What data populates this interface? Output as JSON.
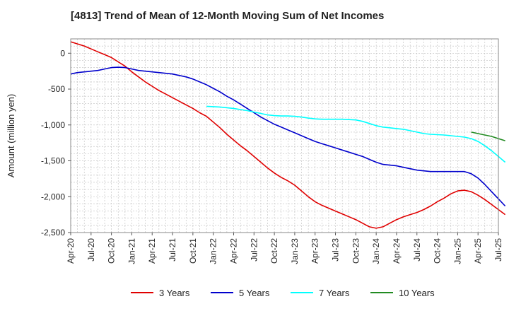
{
  "chart_data": {
    "type": "line",
    "title": "[4813]  Trend of Mean of 12-Month Moving Sum of Net Incomes",
    "xlabel": "",
    "ylabel": "Amount (million yen)",
    "ylim": [
      -2500,
      200
    ],
    "yticks": [
      0,
      -500,
      -1000,
      -1500,
      -2000,
      -2500
    ],
    "ytick_labels": [
      "0",
      "-500",
      "-1,000",
      "-1,500",
      "-2,000",
      "-2,500"
    ],
    "xticks": [
      "Apr-20",
      "Jul-20",
      "Oct-20",
      "Jan-21",
      "Apr-21",
      "Jul-21",
      "Oct-21",
      "Jan-22",
      "Apr-22",
      "Jul-22",
      "Oct-22",
      "Jan-23",
      "Apr-23",
      "Jul-23",
      "Oct-23",
      "Jan-24",
      "Apr-24",
      "Jul-24",
      "Oct-24",
      "Jan-25",
      "Apr-25",
      "Jul-25"
    ],
    "grid": true,
    "legend_position": "bottom",
    "series": [
      {
        "name": "3 Years",
        "color": "#e00000",
        "points": [
          [
            0,
            160
          ],
          [
            1,
            130
          ],
          [
            2,
            100
          ],
          [
            3,
            60
          ],
          [
            4,
            20
          ],
          [
            5,
            -20
          ],
          [
            6,
            -60
          ],
          [
            7,
            -120
          ],
          [
            8,
            -180
          ],
          [
            9,
            -260
          ],
          [
            10,
            -330
          ],
          [
            11,
            -400
          ],
          [
            12,
            -460
          ],
          [
            13,
            -520
          ],
          [
            14,
            -570
          ],
          [
            15,
            -620
          ],
          [
            16,
            -670
          ],
          [
            17,
            -720
          ],
          [
            18,
            -770
          ],
          [
            19,
            -830
          ],
          [
            20,
            -880
          ],
          [
            21,
            -960
          ],
          [
            22,
            -1040
          ],
          [
            23,
            -1130
          ],
          [
            24,
            -1210
          ],
          [
            25,
            -1290
          ],
          [
            26,
            -1360
          ],
          [
            27,
            -1440
          ],
          [
            28,
            -1520
          ],
          [
            29,
            -1600
          ],
          [
            30,
            -1670
          ],
          [
            31,
            -1730
          ],
          [
            32,
            -1780
          ],
          [
            33,
            -1840
          ],
          [
            34,
            -1920
          ],
          [
            35,
            -2000
          ],
          [
            36,
            -2070
          ],
          [
            37,
            -2120
          ],
          [
            38,
            -2160
          ],
          [
            39,
            -2200
          ],
          [
            40,
            -2240
          ],
          [
            41,
            -2280
          ],
          [
            42,
            -2320
          ],
          [
            43,
            -2370
          ],
          [
            44,
            -2420
          ],
          [
            45,
            -2440
          ],
          [
            46,
            -2420
          ],
          [
            47,
            -2370
          ],
          [
            48,
            -2320
          ],
          [
            49,
            -2280
          ],
          [
            50,
            -2250
          ],
          [
            51,
            -2220
          ],
          [
            52,
            -2180
          ],
          [
            53,
            -2130
          ],
          [
            54,
            -2070
          ],
          [
            55,
            -2020
          ],
          [
            56,
            -1960
          ],
          [
            57,
            -1920
          ],
          [
            58,
            -1910
          ],
          [
            59,
            -1930
          ],
          [
            60,
            -1980
          ],
          [
            61,
            -2040
          ],
          [
            62,
            -2110
          ],
          [
            63,
            -2180
          ],
          [
            64,
            -2250
          ]
        ]
      },
      {
        "name": "5 Years",
        "color": "#0000cc",
        "points": [
          [
            0,
            -290
          ],
          [
            1,
            -270
          ],
          [
            2,
            -260
          ],
          [
            3,
            -250
          ],
          [
            4,
            -240
          ],
          [
            5,
            -220
          ],
          [
            6,
            -200
          ],
          [
            7,
            -195
          ],
          [
            8,
            -200
          ],
          [
            9,
            -220
          ],
          [
            10,
            -240
          ],
          [
            11,
            -250
          ],
          [
            12,
            -260
          ],
          [
            13,
            -270
          ],
          [
            14,
            -280
          ],
          [
            15,
            -290
          ],
          [
            16,
            -310
          ],
          [
            17,
            -330
          ],
          [
            18,
            -360
          ],
          [
            19,
            -400
          ],
          [
            20,
            -440
          ],
          [
            21,
            -490
          ],
          [
            22,
            -540
          ],
          [
            23,
            -600
          ],
          [
            24,
            -650
          ],
          [
            25,
            -710
          ],
          [
            26,
            -770
          ],
          [
            27,
            -830
          ],
          [
            28,
            -890
          ],
          [
            29,
            -940
          ],
          [
            30,
            -990
          ],
          [
            31,
            -1030
          ],
          [
            32,
            -1070
          ],
          [
            33,
            -1110
          ],
          [
            34,
            -1150
          ],
          [
            35,
            -1190
          ],
          [
            36,
            -1230
          ],
          [
            37,
            -1260
          ],
          [
            38,
            -1290
          ],
          [
            39,
            -1320
          ],
          [
            40,
            -1350
          ],
          [
            41,
            -1380
          ],
          [
            42,
            -1410
          ],
          [
            43,
            -1440
          ],
          [
            44,
            -1480
          ],
          [
            45,
            -1520
          ],
          [
            46,
            -1550
          ],
          [
            47,
            -1560
          ],
          [
            48,
            -1570
          ],
          [
            49,
            -1590
          ],
          [
            50,
            -1610
          ],
          [
            51,
            -1630
          ],
          [
            52,
            -1640
          ],
          [
            53,
            -1650
          ],
          [
            54,
            -1650
          ],
          [
            55,
            -1650
          ],
          [
            56,
            -1650
          ],
          [
            57,
            -1650
          ],
          [
            58,
            -1650
          ],
          [
            59,
            -1680
          ],
          [
            60,
            -1740
          ],
          [
            61,
            -1830
          ],
          [
            62,
            -1930
          ],
          [
            63,
            -2030
          ],
          [
            64,
            -2130
          ]
        ]
      },
      {
        "name": "7 Years",
        "color": "#00ffff",
        "points": [
          [
            20,
            -740
          ],
          [
            21,
            -745
          ],
          [
            22,
            -750
          ],
          [
            23,
            -760
          ],
          [
            24,
            -770
          ],
          [
            25,
            -785
          ],
          [
            26,
            -800
          ],
          [
            27,
            -820
          ],
          [
            28,
            -840
          ],
          [
            29,
            -860
          ],
          [
            30,
            -870
          ],
          [
            31,
            -875
          ],
          [
            32,
            -875
          ],
          [
            33,
            -880
          ],
          [
            34,
            -890
          ],
          [
            35,
            -905
          ],
          [
            36,
            -915
          ],
          [
            37,
            -920
          ],
          [
            38,
            -920
          ],
          [
            39,
            -920
          ],
          [
            40,
            -920
          ],
          [
            41,
            -925
          ],
          [
            42,
            -930
          ],
          [
            43,
            -950
          ],
          [
            44,
            -980
          ],
          [
            45,
            -1010
          ],
          [
            46,
            -1030
          ],
          [
            47,
            -1040
          ],
          [
            48,
            -1050
          ],
          [
            49,
            -1060
          ],
          [
            50,
            -1080
          ],
          [
            51,
            -1100
          ],
          [
            52,
            -1120
          ],
          [
            53,
            -1130
          ],
          [
            54,
            -1135
          ],
          [
            55,
            -1140
          ],
          [
            56,
            -1150
          ],
          [
            57,
            -1160
          ],
          [
            58,
            -1170
          ],
          [
            59,
            -1190
          ],
          [
            60,
            -1230
          ],
          [
            61,
            -1290
          ],
          [
            62,
            -1360
          ],
          [
            63,
            -1440
          ],
          [
            64,
            -1520
          ]
        ]
      },
      {
        "name": "10 Years",
        "color": "#228b22",
        "points": [
          [
            59,
            -1100
          ],
          [
            60,
            -1120
          ],
          [
            61,
            -1140
          ],
          [
            62,
            -1160
          ],
          [
            63,
            -1190
          ],
          [
            64,
            -1220
          ]
        ]
      }
    ]
  }
}
